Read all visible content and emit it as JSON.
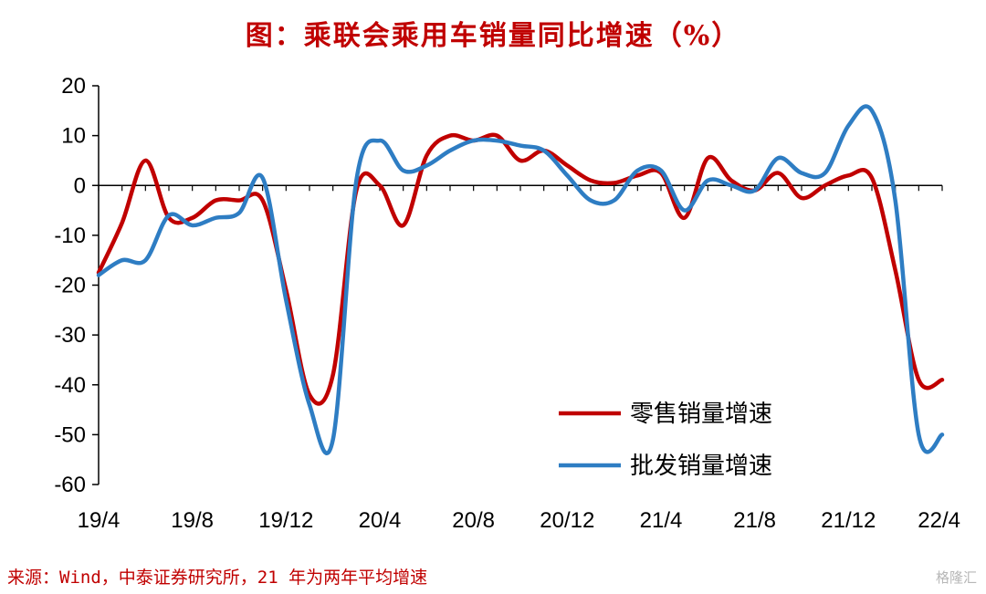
{
  "title": "图：乘联会乘用车销量同比增速（%）",
  "source": "来源：Wind，中泰证券研究所，21 年为两年平均增速",
  "watermark": "格隆汇",
  "colors": {
    "retail": "#c00000",
    "wholesale": "#2e7dc3",
    "title": "#c00000"
  },
  "chart_data": {
    "type": "line",
    "title": "图：乘联会乘用车销量同比增速（%）",
    "xlabel": "",
    "ylabel": "",
    "ylim": [
      -60,
      20
    ],
    "yticks": [
      20,
      10,
      0,
      -10,
      -20,
      -30,
      -40,
      -50,
      -60
    ],
    "xticks": [
      "19/4",
      "19/8",
      "19/12",
      "20/4",
      "20/8",
      "20/12",
      "21/4",
      "21/8",
      "21/12",
      "22/4"
    ],
    "x": [
      "19/4",
      "19/5",
      "19/6",
      "19/7",
      "19/8",
      "19/9",
      "19/10",
      "19/11",
      "19/12",
      "20/1",
      "20/2",
      "20/3",
      "20/4",
      "20/5",
      "20/6",
      "20/7",
      "20/8",
      "20/9",
      "20/10",
      "20/11",
      "20/12",
      "21/1",
      "21/2",
      "21/3",
      "21/4",
      "21/5",
      "21/6",
      "21/7",
      "21/8",
      "21/9",
      "21/10",
      "21/11",
      "21/12",
      "22/1",
      "22/2",
      "22/3",
      "22/4"
    ],
    "legend_position": "bottom-right",
    "series": [
      {
        "name": "零售销量增速",
        "color": "#c00000",
        "values": [
          -17.5,
          -7.5,
          5,
          -6.5,
          -6.5,
          -3,
          -3,
          -3,
          -21,
          -42,
          -38,
          -1,
          0,
          -8,
          6,
          10,
          9,
          10,
          5,
          7,
          4,
          1,
          0.5,
          2,
          2.5,
          -6.5,
          5.5,
          1,
          -1,
          2.5,
          -2.5,
          0,
          2,
          1.5,
          -17,
          -39,
          -39
        ]
      },
      {
        "name": "批发销量增速",
        "color": "#2e7dc3",
        "values": [
          -18,
          -15,
          -15,
          -6,
          -8,
          -6.5,
          -5.5,
          1.5,
          -23,
          -44,
          -51,
          1,
          9,
          3,
          4,
          7,
          9,
          9,
          8,
          7,
          2,
          -3,
          -3,
          3,
          3,
          -5,
          1,
          0,
          -1,
          5.5,
          2.5,
          2.5,
          12,
          15,
          -3,
          -50,
          -50
        ]
      }
    ]
  }
}
